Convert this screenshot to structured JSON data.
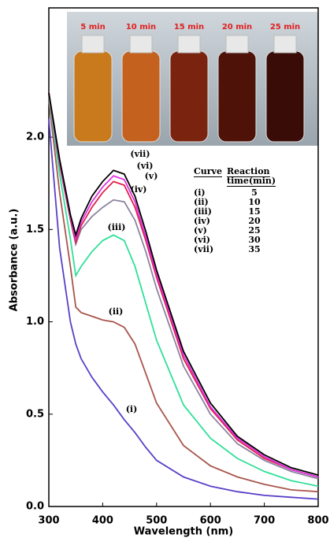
{
  "chart_data": {
    "type": "line",
    "x_label": "Wavelength (nm)",
    "y_label": "Absorbance (a.u.)",
    "x": [
      300,
      320,
      340,
      350,
      360,
      380,
      400,
      420,
      440,
      460,
      480,
      500,
      550,
      600,
      650,
      700,
      750,
      800
    ],
    "xlim": [
      300,
      800
    ],
    "xticks": [
      300,
      400,
      500,
      600,
      700,
      800
    ],
    "ylim": [
      0,
      2.7
    ],
    "yticks": [
      {
        "value": 0,
        "label": "0.0"
      },
      0.5,
      {
        "value": 1,
        "label": "1.0"
      },
      1.5,
      {
        "value": 2,
        "label": "2.0"
      }
    ],
    "table_headers": [
      "Curve",
      "Reaction time(min)"
    ],
    "inset_labels": [
      "5 min",
      "10 min",
      "15 min",
      "20 min",
      "25 min"
    ],
    "series": [
      {
        "name": "(i)",
        "reaction_time": 5,
        "color": "#5a3fc8",
        "values": [
          2.1,
          1.4,
          1.0,
          0.88,
          0.8,
          0.7,
          0.62,
          0.55,
          0.47,
          0.4,
          0.32,
          0.25,
          0.16,
          0.11,
          0.08,
          0.06,
          0.05,
          0.04
        ]
      },
      {
        "name": "(ii)",
        "reaction_time": 10,
        "color": "#a8564c",
        "values": [
          2.2,
          1.7,
          1.3,
          1.08,
          1.05,
          1.03,
          1.01,
          1.0,
          0.97,
          0.88,
          0.72,
          0.56,
          0.33,
          0.22,
          0.16,
          0.12,
          0.09,
          0.08
        ]
      },
      {
        "name": "(iii)",
        "reaction_time": 15,
        "color": "#2fe09a",
        "values": [
          2.22,
          1.8,
          1.45,
          1.25,
          1.3,
          1.38,
          1.44,
          1.47,
          1.44,
          1.3,
          1.1,
          0.9,
          0.55,
          0.37,
          0.26,
          0.19,
          0.14,
          0.11
        ]
      },
      {
        "name": "(iv)",
        "reaction_time": 20,
        "color": "#8c82a0",
        "values": [
          2.23,
          1.85,
          1.55,
          1.42,
          1.5,
          1.57,
          1.62,
          1.66,
          1.65,
          1.55,
          1.38,
          1.18,
          0.76,
          0.5,
          0.34,
          0.25,
          0.19,
          0.15
        ]
      },
      {
        "name": "(v)",
        "reaction_time": 25,
        "color": "#e0204a",
        "values": [
          2.24,
          1.86,
          1.56,
          1.43,
          1.52,
          1.62,
          1.7,
          1.76,
          1.74,
          1.62,
          1.44,
          1.24,
          0.8,
          0.53,
          0.36,
          0.26,
          0.2,
          0.16
        ]
      },
      {
        "name": "(vi)",
        "reaction_time": 30,
        "color": "#e030e0",
        "values": [
          2.24,
          1.87,
          1.57,
          1.45,
          1.54,
          1.65,
          1.73,
          1.79,
          1.77,
          1.65,
          1.46,
          1.26,
          0.82,
          0.54,
          0.37,
          0.27,
          0.2,
          0.16
        ]
      },
      {
        "name": "(vii)",
        "reaction_time": 35,
        "color": "#000000",
        "values": [
          2.24,
          1.88,
          1.58,
          1.47,
          1.56,
          1.68,
          1.76,
          1.82,
          1.8,
          1.68,
          1.49,
          1.28,
          0.84,
          0.56,
          0.38,
          0.28,
          0.21,
          0.17
        ]
      }
    ]
  }
}
